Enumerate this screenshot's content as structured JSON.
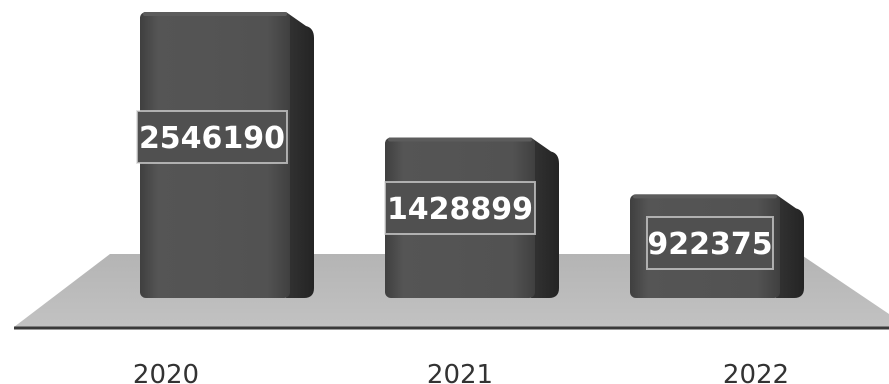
{
  "chart_data": {
    "type": "bar",
    "style": "3d",
    "categories": [
      "2020",
      "2021",
      "2022"
    ],
    "values": [
      2546190,
      1428899,
      922375
    ],
    "title": "",
    "xlabel": "",
    "ylabel": "",
    "ylim": [
      0,
      2546190
    ],
    "grid": false,
    "legend": "none",
    "colors": {
      "bar_front": "#4f4f4f",
      "bar_side": "#2e2e2e",
      "bar_top": "#5c5c5c",
      "floor": "#b9b9b9",
      "floor_edge": "#3a3a3a",
      "label_box": "#505050",
      "label_box_border": "#d9d9d9"
    }
  }
}
